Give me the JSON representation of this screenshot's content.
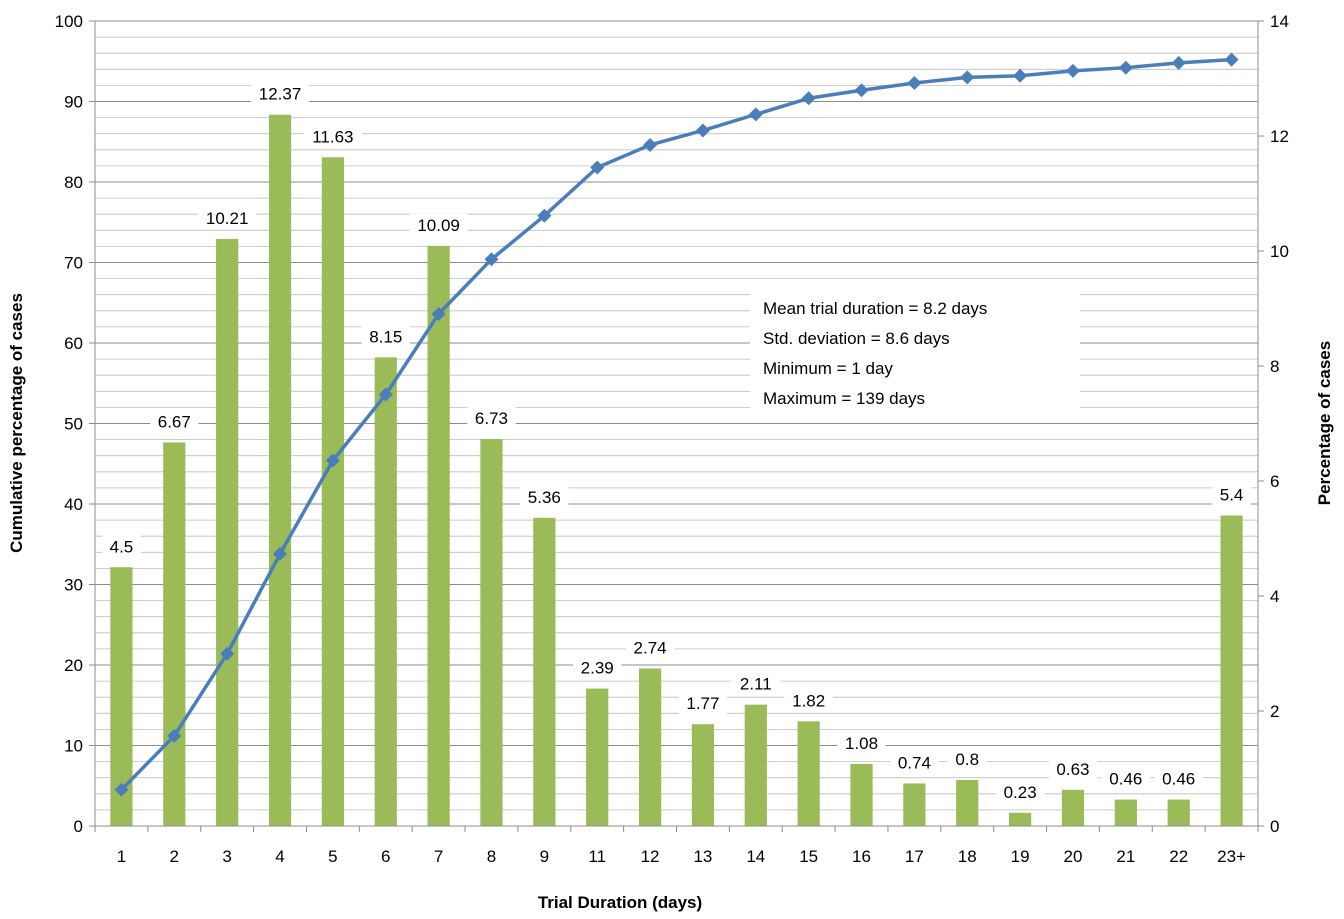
{
  "chart_data": {
    "type": "bar",
    "categories": [
      "1",
      "2",
      "3",
      "4",
      "5",
      "6",
      "7",
      "8",
      "9",
      "11",
      "12",
      "13",
      "14",
      "15",
      "16",
      "17",
      "18",
      "19",
      "20",
      "21",
      "22",
      "23+"
    ],
    "series": [
      {
        "type": "bar",
        "axis": "right",
        "color": "#9bbb59",
        "values": [
          4.5,
          6.67,
          10.21,
          12.37,
          11.63,
          8.15,
          10.09,
          6.73,
          5.36,
          2.39,
          2.74,
          1.77,
          2.11,
          1.82,
          1.08,
          0.74,
          0.8,
          0.23,
          0.63,
          0.46,
          0.46,
          5.4
        ],
        "labels": [
          "4.5",
          "6.67",
          "10.21",
          "12.37",
          "11.63",
          "8.15",
          "10.09",
          "6.73",
          "5.36",
          "2.39",
          "2.74",
          "1.77",
          "2.11",
          "1.82",
          "1.08",
          "0.74",
          "0.8",
          "0.23",
          "0.63",
          "0.46",
          "0.46",
          "5.4"
        ]
      },
      {
        "type": "line",
        "axis": "left",
        "color": "#4a7ebb",
        "marker": "diamond",
        "values": [
          4.5,
          11.2,
          21.4,
          33.8,
          45.4,
          53.6,
          63.6,
          70.4,
          75.8,
          81.8,
          84.6,
          86.4,
          88.4,
          90.4,
          91.4,
          92.3,
          93.0,
          93.2,
          93.8,
          94.2,
          94.8,
          95.2
        ]
      }
    ],
    "title": "",
    "xlabel": "Trial Duration (days)",
    "ylabel": "Cumulative percentage of cases",
    "y2label": "Percentage of cases",
    "ylim": [
      0,
      100
    ],
    "y2lim": [
      0,
      14
    ],
    "yticks": [
      "0",
      "10",
      "20",
      "30",
      "40",
      "50",
      "60",
      "70",
      "80",
      "90",
      "100"
    ],
    "y2ticks": [
      "0",
      "2",
      "4",
      "6",
      "8",
      "10",
      "12",
      "14"
    ],
    "grid": true,
    "annotations": [
      "Mean trial duration = 8.2 days",
      "Std. deviation = 8.6 days",
      "Minimum = 1 day",
      "Maximum = 139 days"
    ]
  }
}
